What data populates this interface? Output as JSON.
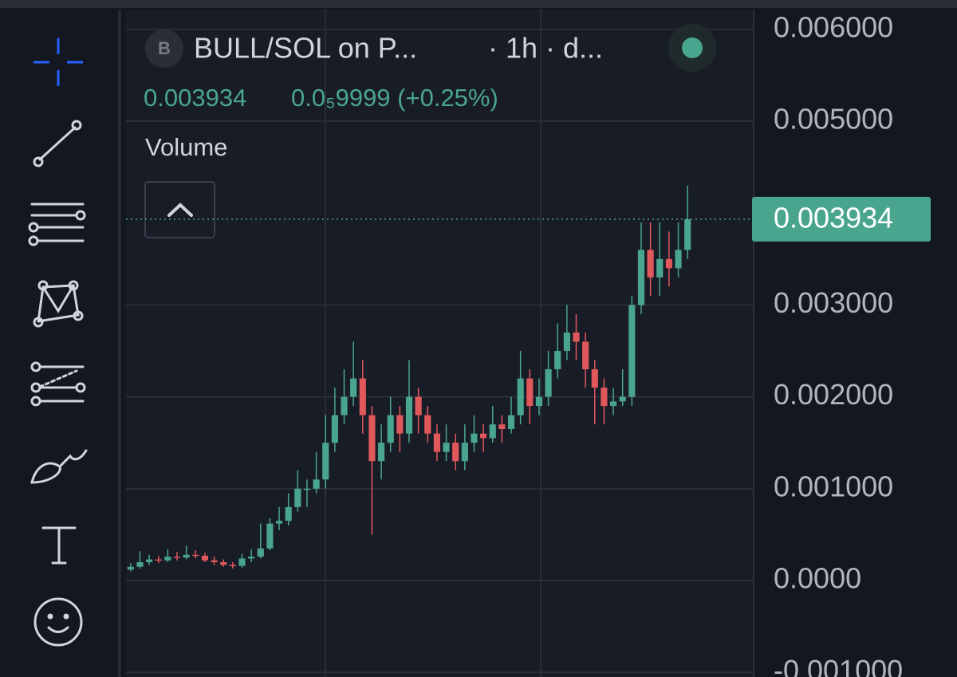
{
  "chart_data": {
    "type": "candlestick",
    "badge": "B",
    "title": "BULL/SOL on P...",
    "interval": "· 1h · d...",
    "change": "0.0₅9999 (+0.25%)",
    "indicator": "Volume",
    "up_color": "#4aa58f",
    "down_color": "#e0585b",
    "grid": true,
    "ylim": [
      -0.00105,
      0.00632
    ],
    "yticks": [
      {
        "value": 0.006,
        "label": "0.006000"
      },
      {
        "value": 0.005,
        "label": "0.005000"
      },
      {
        "value": 0.003,
        "label": "0.003000"
      },
      {
        "value": 0.002,
        "label": "0.002000"
      },
      {
        "value": 0.001,
        "label": "0.001000"
      },
      {
        "value": 0,
        "label": "0.0000"
      },
      {
        "value": -0.001,
        "label": "-0.001000"
      }
    ],
    "last_price": {
      "value": 0.003934,
      "label": "0.003934"
    },
    "open": [
      0.00012,
      0.00015,
      0.0002,
      0.00023,
      0.00022,
      0.00026,
      0.00025,
      0.00028,
      0.00027,
      0.00022,
      0.0002,
      0.00017,
      0.00016,
      0.00024,
      0.00026,
      0.00035,
      0.00062,
      0.00065,
      0.0008,
      0.001,
      0.001,
      0.0011,
      0.0015,
      0.0018,
      0.002,
      0.0022,
      0.0018,
      0.0013,
      0.0015,
      0.0018,
      0.0016,
      0.002,
      0.0018,
      0.0016,
      0.0014,
      0.0015,
      0.0013,
      0.0015,
      0.0016,
      0.00155,
      0.0017,
      0.00165,
      0.0018,
      0.0022,
      0.0019,
      0.002,
      0.0023,
      0.0025,
      0.0027,
      0.0026,
      0.0023,
      0.0021,
      0.0019,
      0.00195,
      0.002,
      0.003,
      0.0036,
      0.0033,
      0.0035,
      0.0034,
      0.0036
    ],
    "high": [
      0.00019,
      0.00032,
      0.00028,
      0.00027,
      0.00034,
      0.00031,
      0.00038,
      0.00033,
      0.0003,
      0.00026,
      0.00023,
      0.0002,
      0.00029,
      0.00034,
      0.00062,
      0.00068,
      0.0008,
      0.00095,
      0.0012,
      0.0011,
      0.0014,
      0.0018,
      0.0021,
      0.0023,
      0.0026,
      0.0024,
      0.0019,
      0.0017,
      0.002,
      0.0019,
      0.0024,
      0.0021,
      0.0019,
      0.0017,
      0.0017,
      0.0016,
      0.0017,
      0.0018,
      0.0017,
      0.0019,
      0.0018,
      0.002,
      0.0025,
      0.0023,
      0.0022,
      0.0025,
      0.0028,
      0.003,
      0.0029,
      0.0027,
      0.0024,
      0.0022,
      0.0021,
      0.0023,
      0.0031,
      0.0039,
      0.0039,
      0.0039,
      0.0038,
      0.0039,
      0.0043
    ],
    "low": [
      0.0001,
      0.00013,
      0.00017,
      0.00019,
      0.0002,
      0.00022,
      0.00023,
      0.00024,
      0.0002,
      0.00017,
      0.00015,
      0.00013,
      0.00014,
      0.0002,
      0.00024,
      0.00033,
      0.00055,
      0.0006,
      0.00075,
      0.0008,
      0.00095,
      0.001,
      0.0014,
      0.0017,
      0.0019,
      0.0016,
      0.0005,
      0.0011,
      0.0014,
      0.0014,
      0.0015,
      0.0016,
      0.0015,
      0.0013,
      0.0013,
      0.0012,
      0.0012,
      0.0014,
      0.0014,
      0.0015,
      0.0015,
      0.0016,
      0.0017,
      0.0017,
      0.0018,
      0.0019,
      0.0022,
      0.0024,
      0.0024,
      0.0021,
      0.0017,
      0.0017,
      0.0018,
      0.0019,
      0.0019,
      0.0029,
      0.0031,
      0.0031,
      0.0032,
      0.0033,
      0.0035
    ],
    "close": [
      0.00015,
      0.0002,
      0.00023,
      0.00022,
      0.00026,
      0.00025,
      0.00028,
      0.00027,
      0.00022,
      0.0002,
      0.00017,
      0.00016,
      0.00024,
      0.00026,
      0.00035,
      0.00062,
      0.00065,
      0.0008,
      0.001,
      0.001,
      0.0011,
      0.0015,
      0.0018,
      0.002,
      0.0022,
      0.0018,
      0.0013,
      0.0015,
      0.0018,
      0.0016,
      0.002,
      0.0018,
      0.0016,
      0.0014,
      0.0015,
      0.0013,
      0.0015,
      0.0016,
      0.00155,
      0.0017,
      0.00165,
      0.0018,
      0.0022,
      0.0019,
      0.002,
      0.0023,
      0.0025,
      0.0027,
      0.0026,
      0.0023,
      0.0021,
      0.0019,
      0.00195,
      0.002,
      0.003,
      0.0036,
      0.0033,
      0.0035,
      0.0034,
      0.0036,
      0.003934
    ]
  }
}
